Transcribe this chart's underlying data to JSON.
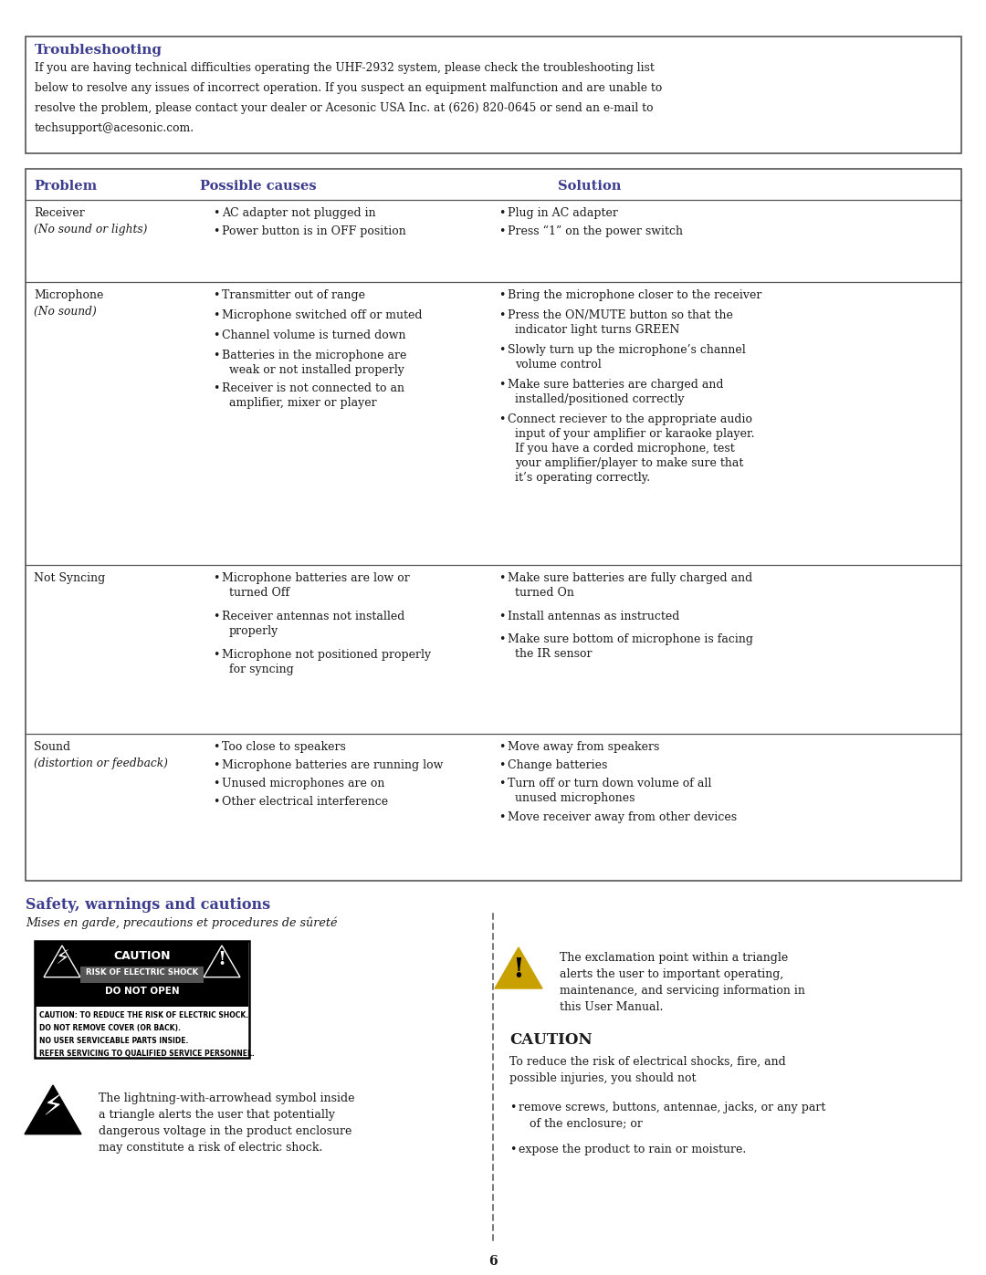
{
  "bg_color": "#ffffff",
  "text_color": "#1a1a1a",
  "header_color": "#3d3d8f",
  "safety_title_color": "#3d3d8f",
  "troubleshooting_title": "Troubleshooting",
  "troubleshooting_body": [
    "If you are having technical difficulties operating the UHF-2932 system, please check the troubleshooting list",
    "below to resolve any issues of incorrect operation. If you suspect an equipment malfunction and are unable to",
    "resolve the problem, please contact your dealer or Acesonic USA Inc. at (626) 820-0645 or send an e-mail to",
    "techsupport@acesonic.com."
  ],
  "table_headers": [
    "Problem",
    "Possible causes",
    "Solution"
  ],
  "safety_title": "Safety, warnings and cautions",
  "safety_subtitle": "Mises en garde, precautions et procedures de sûreté",
  "caution_box_lines": [
    "CAUTION: TO REDUCE THE RISK OF ELECTRIC SHOCK.",
    "DO NOT REMOVE COVER (OR BACK).",
    "NO USER SERVICEABLE PARTS INSIDE.",
    "REFER SERVICING TO QUALIFIED SERVICE PERSONNEL."
  ],
  "lightning_text": [
    "The lightning-with-arrowhead symbol inside",
    "a triangle alerts the user that potentially",
    "dangerous voltage in the product enclosure",
    "may constitute a risk of electric shock."
  ],
  "exclamation_text": [
    "The exclamation point within a triangle",
    "alerts the user to important operating,",
    "maintenance, and servicing information in",
    "this User Manual."
  ],
  "caution_header": "CAUTION",
  "caution_body": [
    "To reduce the risk of electrical shocks, fire, and",
    "possible injuries, you should not"
  ],
  "caution_bullets": [
    [
      "remove screws, buttons, antennae, jacks, or any part",
      "of the enclosure; or"
    ],
    [
      "expose the product to rain or moisture."
    ]
  ],
  "page_number": "6"
}
